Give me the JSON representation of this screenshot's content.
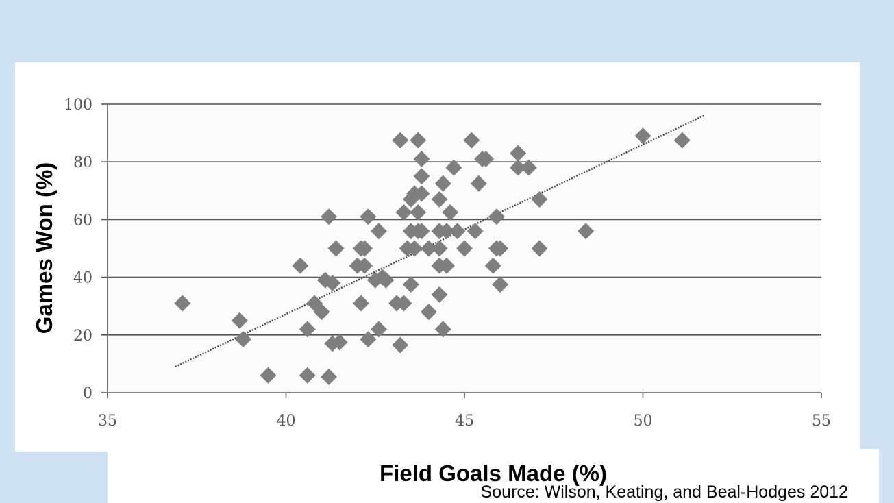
{
  "chart_data": {
    "type": "scatter",
    "title": "",
    "xlabel": "Field Goals Made (%)",
    "ylabel": "Games Won (%)",
    "source": "Source: Wilson, Keating, and Beal-Hodges 2012",
    "xlim": [
      35,
      55
    ],
    "ylim": [
      0,
      100
    ],
    "xticks": [
      "35",
      "40",
      "45",
      "50",
      "55"
    ],
    "yticks": [
      "0",
      "20",
      "40",
      "60",
      "80",
      "100"
    ],
    "grid": true,
    "marker": "diamond",
    "marker_color": "#7f7f7f",
    "line_color": "#444444",
    "trendline": {
      "x": [
        36.9,
        51.7
      ],
      "y": [
        9,
        96
      ]
    },
    "points": [
      {
        "x": 37.1,
        "y": 31
      },
      {
        "x": 38.7,
        "y": 25
      },
      {
        "x": 38.8,
        "y": 18.5
      },
      {
        "x": 39.5,
        "y": 6
      },
      {
        "x": 40.4,
        "y": 44
      },
      {
        "x": 40.6,
        "y": 22
      },
      {
        "x": 40.6,
        "y": 6
      },
      {
        "x": 40.8,
        "y": 31
      },
      {
        "x": 41.0,
        "y": 28
      },
      {
        "x": 41.1,
        "y": 39
      },
      {
        "x": 41.2,
        "y": 61
      },
      {
        "x": 41.2,
        "y": 5.5
      },
      {
        "x": 41.3,
        "y": 17
      },
      {
        "x": 41.3,
        "y": 38
      },
      {
        "x": 41.4,
        "y": 50
      },
      {
        "x": 41.5,
        "y": 17.5
      },
      {
        "x": 42.0,
        "y": 44
      },
      {
        "x": 42.1,
        "y": 31
      },
      {
        "x": 42.1,
        "y": 50
      },
      {
        "x": 42.2,
        "y": 44
      },
      {
        "x": 42.2,
        "y": 50
      },
      {
        "x": 42.3,
        "y": 61
      },
      {
        "x": 42.3,
        "y": 18.5
      },
      {
        "x": 42.5,
        "y": 39
      },
      {
        "x": 42.6,
        "y": 56
      },
      {
        "x": 42.6,
        "y": 22
      },
      {
        "x": 42.7,
        "y": 40
      },
      {
        "x": 42.8,
        "y": 39
      },
      {
        "x": 43.1,
        "y": 31
      },
      {
        "x": 43.2,
        "y": 87.5
      },
      {
        "x": 43.2,
        "y": 16.5
      },
      {
        "x": 43.3,
        "y": 62.5
      },
      {
        "x": 43.3,
        "y": 31
      },
      {
        "x": 43.4,
        "y": 50
      },
      {
        "x": 43.5,
        "y": 67
      },
      {
        "x": 43.5,
        "y": 56
      },
      {
        "x": 43.5,
        "y": 37.5
      },
      {
        "x": 43.6,
        "y": 69
      },
      {
        "x": 43.6,
        "y": 50
      },
      {
        "x": 43.7,
        "y": 87.5
      },
      {
        "x": 43.7,
        "y": 56
      },
      {
        "x": 43.7,
        "y": 62.5
      },
      {
        "x": 43.8,
        "y": 81
      },
      {
        "x": 43.8,
        "y": 75
      },
      {
        "x": 43.8,
        "y": 69
      },
      {
        "x": 43.8,
        "y": 56
      },
      {
        "x": 44.0,
        "y": 50
      },
      {
        "x": 44.0,
        "y": 28
      },
      {
        "x": 44.3,
        "y": 67
      },
      {
        "x": 44.3,
        "y": 56
      },
      {
        "x": 44.3,
        "y": 50
      },
      {
        "x": 44.3,
        "y": 44
      },
      {
        "x": 44.3,
        "y": 34
      },
      {
        "x": 44.4,
        "y": 72.5
      },
      {
        "x": 44.4,
        "y": 22
      },
      {
        "x": 44.5,
        "y": 56
      },
      {
        "x": 44.5,
        "y": 44
      },
      {
        "x": 44.6,
        "y": 62.5
      },
      {
        "x": 44.7,
        "y": 78
      },
      {
        "x": 44.8,
        "y": 56
      },
      {
        "x": 45.0,
        "y": 50
      },
      {
        "x": 45.2,
        "y": 87.5
      },
      {
        "x": 45.3,
        "y": 56
      },
      {
        "x": 45.4,
        "y": 72.5
      },
      {
        "x": 45.5,
        "y": 81
      },
      {
        "x": 45.6,
        "y": 81
      },
      {
        "x": 45.8,
        "y": 44
      },
      {
        "x": 45.9,
        "y": 61
      },
      {
        "x": 45.9,
        "y": 50
      },
      {
        "x": 46.0,
        "y": 50
      },
      {
        "x": 46.0,
        "y": 37.5
      },
      {
        "x": 46.5,
        "y": 83
      },
      {
        "x": 46.5,
        "y": 78
      },
      {
        "x": 46.8,
        "y": 78
      },
      {
        "x": 47.1,
        "y": 67
      },
      {
        "x": 47.1,
        "y": 50
      },
      {
        "x": 48.4,
        "y": 56
      },
      {
        "x": 50.0,
        "y": 89
      },
      {
        "x": 51.1,
        "y": 87.5
      }
    ]
  }
}
